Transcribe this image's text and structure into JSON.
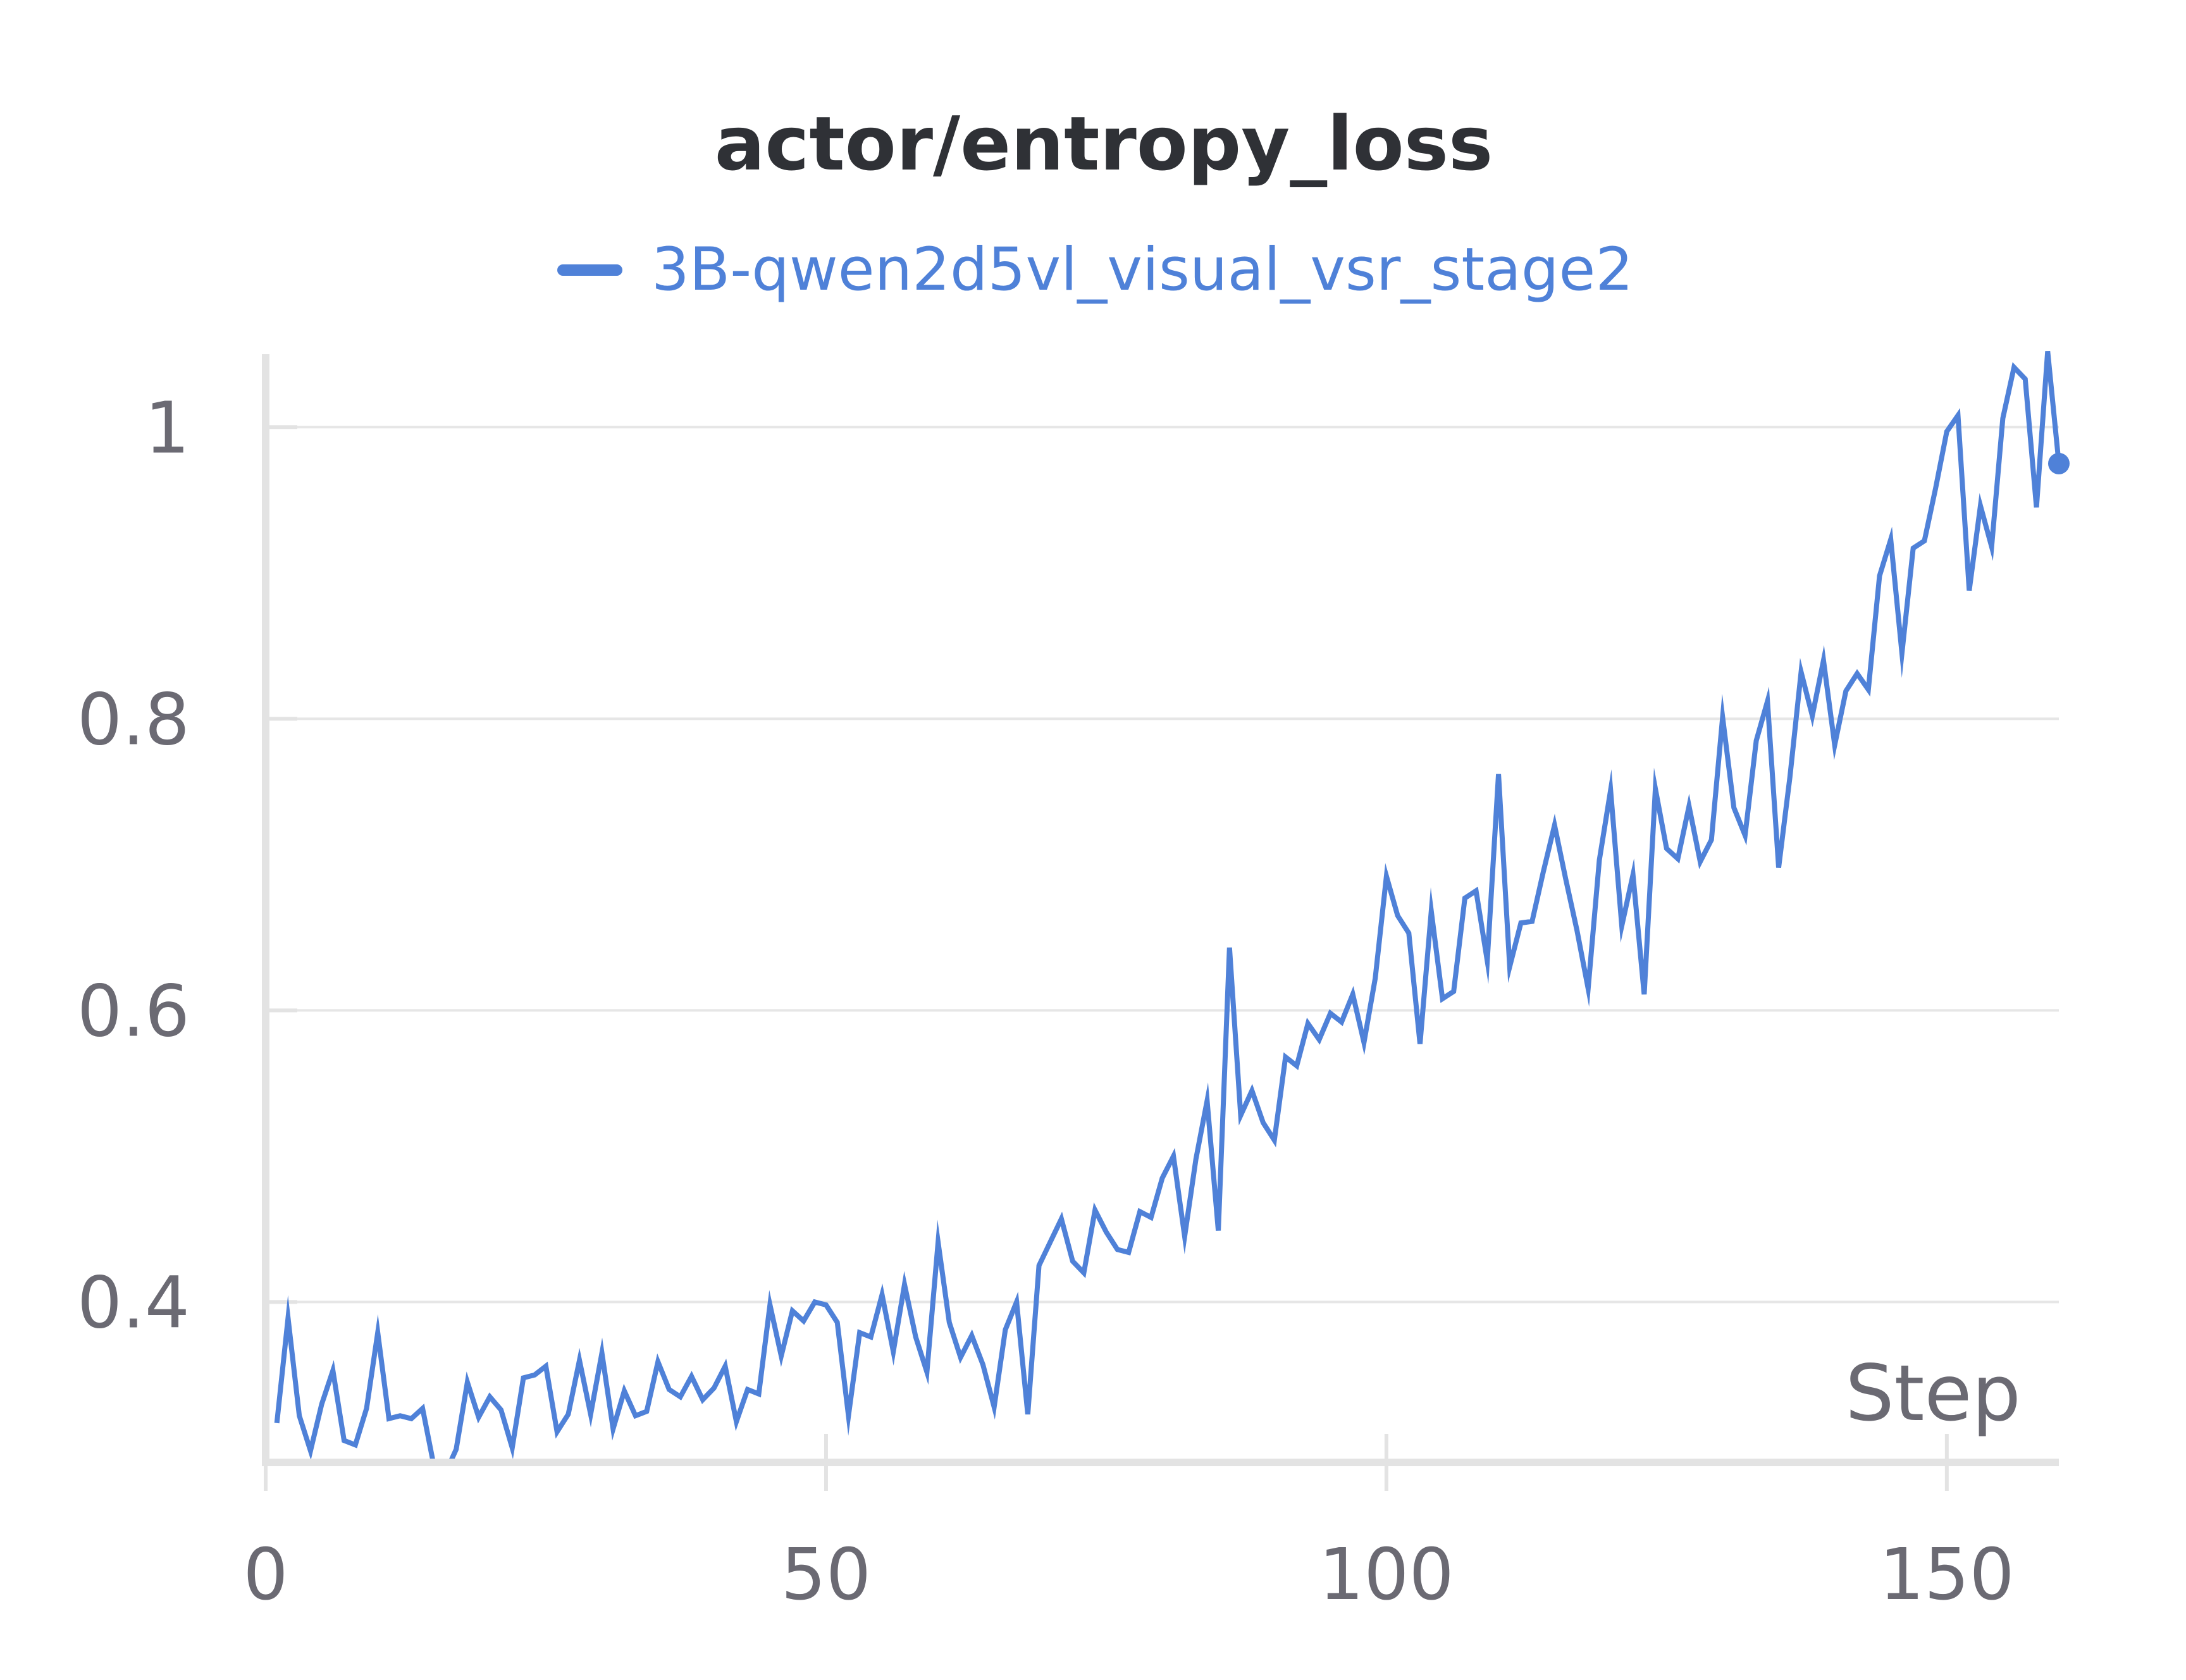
{
  "chart_data": {
    "type": "line",
    "title": "actor/entropy_loss",
    "xlabel": "Step",
    "ylabel": "",
    "xlim": [
      0,
      160
    ],
    "ylim": [
      0.29,
      1.05
    ],
    "xticks": [
      0,
      50,
      100,
      150
    ],
    "xtick_labels": [
      "0",
      "50",
      "100",
      "150"
    ],
    "yticks": [
      0.4,
      0.6,
      0.8,
      1.0
    ],
    "ytick_labels": [
      "0.4",
      "0.6",
      "0.8",
      "1"
    ],
    "grid": true,
    "legend_position": "top-center",
    "colors": {
      "series": "#4f81d8",
      "grid": "#e6e6e6",
      "axis": "#e3e3e3",
      "title": "#2f3136",
      "tick": "#6b6a73"
    },
    "series": [
      {
        "name": "3B-qwen2d5vl_visual_vsr_stage2",
        "x": [
          1,
          2,
          3,
          4,
          5,
          6,
          7,
          8,
          9,
          10,
          11,
          12,
          13,
          14,
          15,
          16,
          17,
          18,
          19,
          20,
          21,
          22,
          23,
          24,
          25,
          26,
          27,
          28,
          29,
          30,
          31,
          32,
          33,
          34,
          35,
          36,
          37,
          38,
          39,
          40,
          41,
          42,
          43,
          44,
          45,
          46,
          47,
          48,
          49,
          50,
          51,
          52,
          53,
          54,
          55,
          56,
          57,
          58,
          59,
          60,
          61,
          62,
          63,
          64,
          65,
          66,
          67,
          68,
          69,
          70,
          71,
          72,
          73,
          74,
          75,
          76,
          77,
          78,
          79,
          80,
          81,
          82,
          83,
          84,
          85,
          86,
          87,
          88,
          89,
          90,
          91,
          92,
          93,
          94,
          95,
          96,
          97,
          98,
          99,
          100,
          101,
          102,
          103,
          104,
          105,
          106,
          107,
          108,
          109,
          110,
          111,
          112,
          113,
          114,
          115,
          116,
          117,
          118,
          119,
          120,
          121,
          122,
          123,
          124,
          125,
          126,
          127,
          128,
          129,
          130,
          131,
          132,
          133,
          134,
          135,
          136,
          137,
          138,
          139,
          140,
          141,
          142,
          143,
          144,
          145,
          146,
          147,
          148,
          149,
          150,
          151,
          152,
          153,
          154,
          155,
          156,
          157,
          158,
          159,
          160
        ],
        "values": [
          0.317,
          0.389,
          0.322,
          0.298,
          0.33,
          0.353,
          0.305,
          0.302,
          0.327,
          0.379,
          0.32,
          0.322,
          0.32,
          0.327,
          0.288,
          0.282,
          0.299,
          0.345,
          0.321,
          0.335,
          0.326,
          0.3,
          0.348,
          0.35,
          0.356,
          0.311,
          0.323,
          0.36,
          0.323,
          0.365,
          0.313,
          0.339,
          0.322,
          0.325,
          0.359,
          0.34,
          0.335,
          0.349,
          0.333,
          0.341,
          0.356,
          0.318,
          0.34,
          0.337,
          0.398,
          0.363,
          0.394,
          0.387,
          0.4,
          0.398,
          0.386,
          0.322,
          0.379,
          0.376,
          0.405,
          0.366,
          0.412,
          0.376,
          0.352,
          0.441,
          0.386,
          0.362,
          0.377,
          0.357,
          0.328,
          0.381,
          0.4,
          0.323,
          0.425,
          0.441,
          0.457,
          0.428,
          0.42,
          0.463,
          0.448,
          0.436,
          0.434,
          0.462,
          0.458,
          0.485,
          0.5,
          0.445,
          0.498,
          0.538,
          0.449,
          0.643,
          0.528,
          0.545,
          0.523,
          0.511,
          0.568,
          0.562,
          0.591,
          0.58,
          0.598,
          0.592,
          0.611,
          0.578,
          0.622,
          0.692,
          0.665,
          0.653,
          0.577,
          0.668,
          0.608,
          0.613,
          0.677,
          0.682,
          0.634,
          0.762,
          0.63,
          0.66,
          0.661,
          0.695,
          0.727,
          0.69,
          0.655,
          0.615,
          0.703,
          0.751,
          0.658,
          0.693,
          0.611,
          0.752,
          0.711,
          0.704,
          0.74,
          0.702,
          0.717,
          0.801,
          0.739,
          0.72,
          0.785,
          0.812,
          0.698,
          0.76,
          0.832,
          0.802,
          0.84,
          0.782,
          0.819,
          0.831,
          0.82,
          0.898,
          0.923,
          0.845,
          0.917,
          0.922,
          0.958,
          0.997,
          1.008,
          0.888,
          0.946,
          0.918,
          1.006,
          1.041,
          1.033,
          0.945,
          1.052,
          0.975
        ]
      }
    ]
  }
}
